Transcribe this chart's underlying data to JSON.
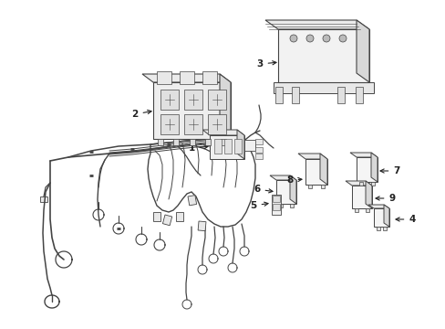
{
  "background_color": "#ffffff",
  "line_color": "#444444",
  "label_color": "#222222",
  "figure_width": 4.89,
  "figure_height": 3.6,
  "dpi": 100,
  "font_size": 7.5
}
